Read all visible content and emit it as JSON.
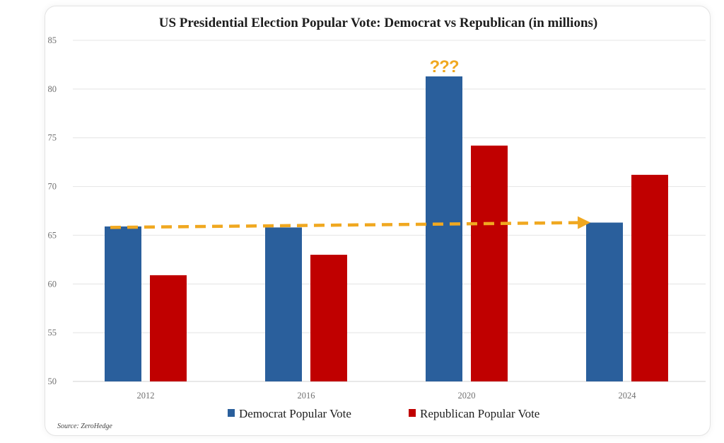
{
  "chart_data": {
    "type": "bar",
    "title": "US Presidential Election Popular Vote: Democrat vs Republican (in millions)",
    "categories": [
      "2012",
      "2016",
      "2020",
      "2024"
    ],
    "series": [
      {
        "name": "Democrat Popular Vote",
        "color": "#2a5f9c",
        "values": [
          65.9,
          65.8,
          81.3,
          66.3
        ]
      },
      {
        "name": "Republican Popular Vote",
        "color": "#c00000",
        "values": [
          60.9,
          63.0,
          74.2,
          71.2
        ]
      }
    ],
    "ylim": [
      50,
      85
    ],
    "yticks": [
      "50",
      "55",
      "60",
      "65",
      "70",
      "75",
      "80",
      "85"
    ],
    "grid": true,
    "legend_position": "bottom-center",
    "xlabel": "",
    "ylabel": "",
    "annotations": [
      {
        "text": "???",
        "category": "2020",
        "series": "Democrat Popular Vote",
        "color": "#f0a820"
      },
      {
        "type": "dashed-arrow",
        "from_category": "2012",
        "to_category": "2024",
        "from_value": 65.8,
        "to_value": 66.3,
        "color": "#f0a820"
      }
    ],
    "source": "Source: ZeroHedge"
  }
}
